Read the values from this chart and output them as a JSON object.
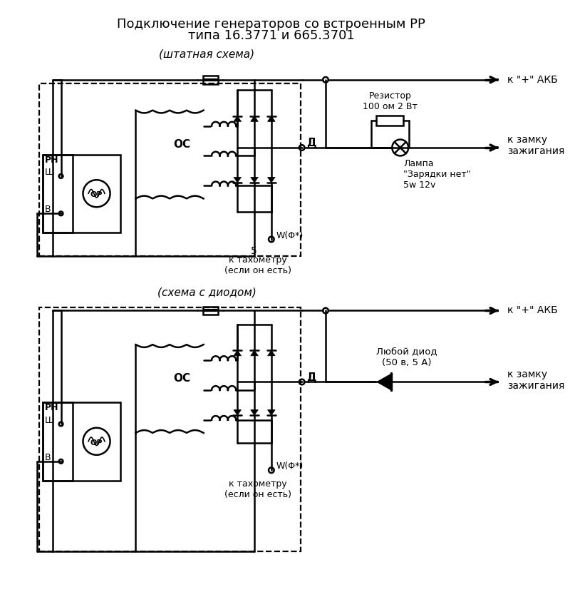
{
  "title_line1": "Подключение генераторов со встроенным РР",
  "title_line2": "типа 16.3771 и 665.3701",
  "subtitle1": "(штатная схема)",
  "subtitle2": "(схема с диодом)",
  "label_RN": "РН",
  "label_OS": "ОС",
  "label_OR": "ОР",
  "label_Sh": "Ш",
  "label_B": "В",
  "label_D": "Д",
  "label_W": "W(Φ*)",
  "label_5": "5",
  "label_akb": "к \"+\" АКБ",
  "label_zamok1": "к замку\nзажигания",
  "label_zamok2": "к замку\nзажигания",
  "label_taho1": "к тахометру\n(если он есть)",
  "label_taho2": "к тахометру\n(если он есть)",
  "label_resistor": "Резистор\n100 ом 2 Вт",
  "label_lampa": "Лампа\n\"Зарядки нет\"\n5w 12v",
  "label_diod_any": "Любой диод\n(50 в, 5 А)",
  "label_akb2": "к \"+\" АКБ",
  "bg_color": "#ffffff",
  "lw": 1.8
}
